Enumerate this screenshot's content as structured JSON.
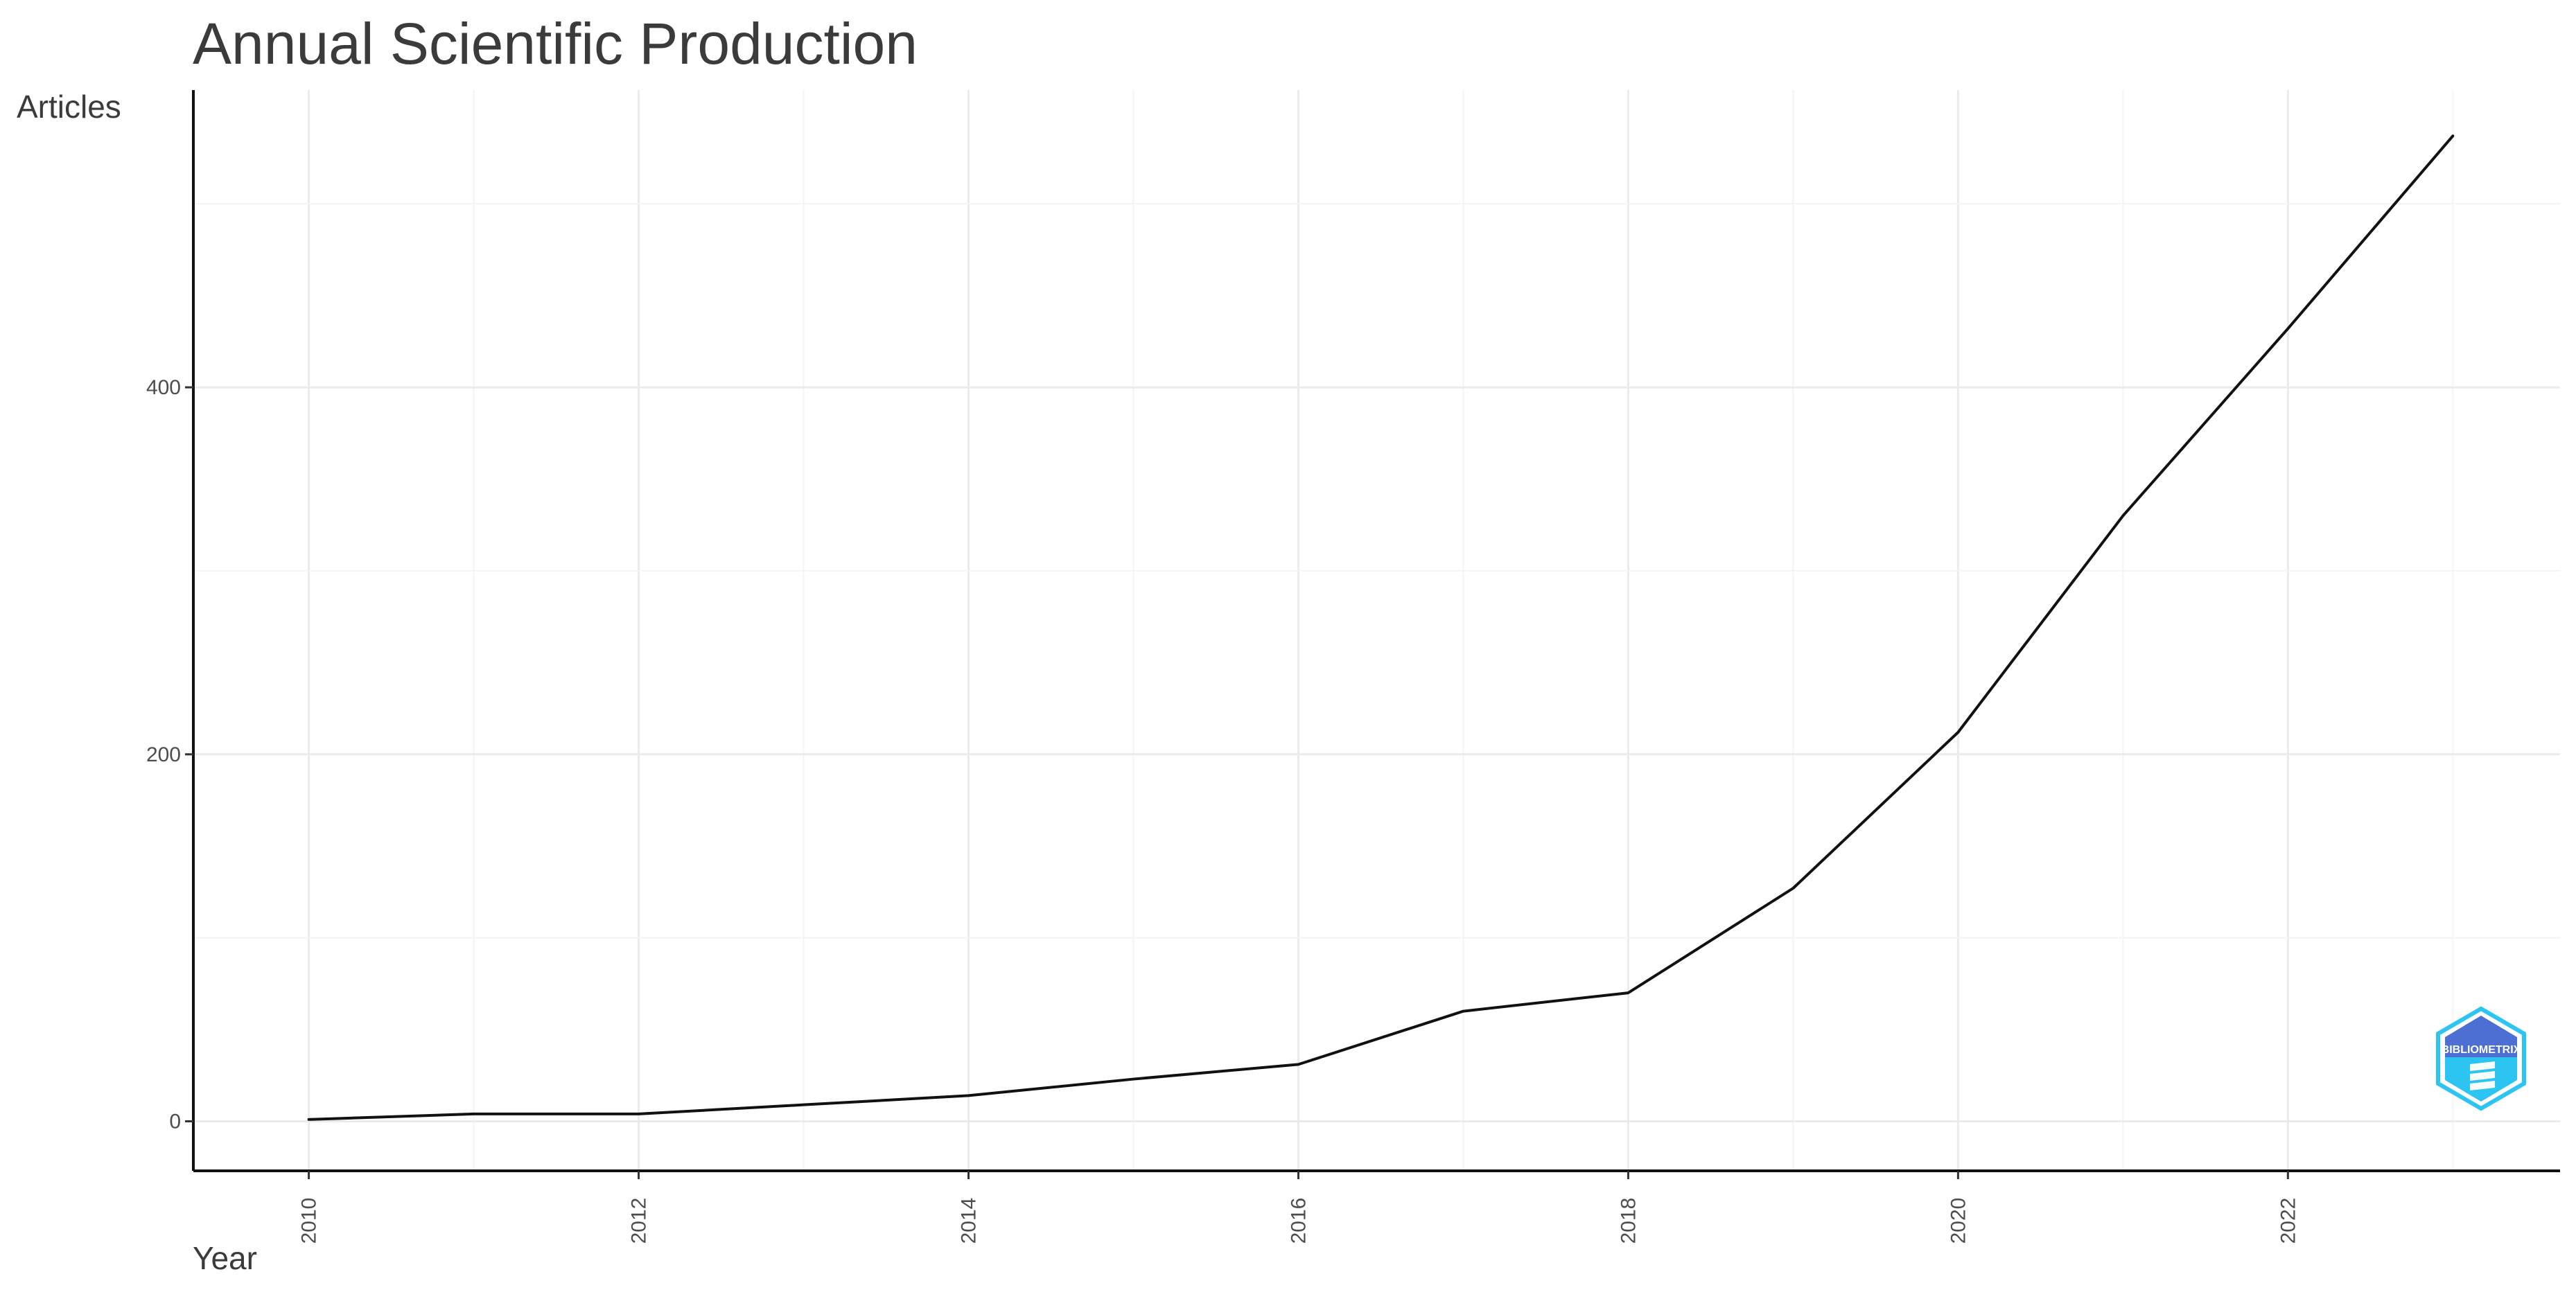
{
  "chart_data": {
    "type": "line",
    "title": "Annual Scientific Production",
    "xlabel": "Year",
    "ylabel": "Articles",
    "x": [
      2010,
      2011,
      2012,
      2013,
      2014,
      2015,
      2016,
      2017,
      2018,
      2019,
      2020,
      2021,
      2022,
      2023
    ],
    "series": [
      {
        "values": [
          1,
          4,
          4,
          9,
          14,
          23,
          31,
          60,
          70,
          127,
          212,
          330,
          432,
          537
        ]
      }
    ],
    "xlim": [
      2009.3,
      2023.65
    ],
    "ylim": [
      -27,
      562
    ],
    "x_ticks": [
      2010,
      2012,
      2014,
      2016,
      2018,
      2020,
      2022
    ],
    "x_tick_labels": [
      "2010",
      "2012",
      "2014",
      "2016",
      "2018",
      "2020",
      "2022"
    ],
    "y_ticks": [
      0,
      200,
      400
    ],
    "y_tick_labels": [
      "0",
      "200",
      "400"
    ],
    "grid": true,
    "legend": "none",
    "line_color": "#111111"
  },
  "watermark": {
    "text": "BIBLIOMETRIX",
    "colors": {
      "top": "#4d6fd4",
      "bottom": "#2cc4f0"
    }
  }
}
